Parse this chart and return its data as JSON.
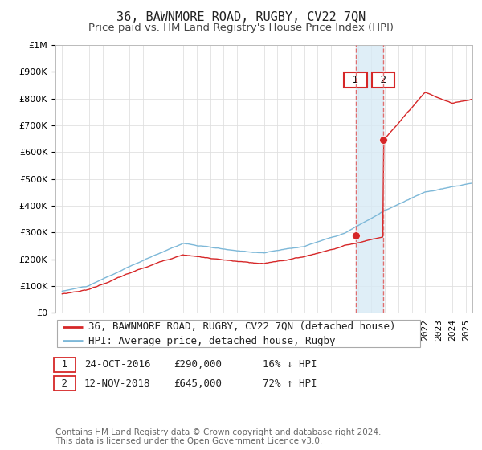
{
  "title": "36, BAWNMORE ROAD, RUGBY, CV22 7QN",
  "subtitle": "Price paid vs. HM Land Registry's House Price Index (HPI)",
  "legend_line1": "36, BAWNMORE ROAD, RUGBY, CV22 7QN (detached house)",
  "legend_line2": "HPI: Average price, detached house, Rugby",
  "footer": "Contains HM Land Registry data © Crown copyright and database right 2024.\nThis data is licensed under the Open Government Licence v3.0.",
  "sale1_label": "1",
  "sale1_date": "24-OCT-2016",
  "sale1_price": "£290,000",
  "sale1_pct": "16% ↓ HPI",
  "sale1_year": 2016.81,
  "sale1_value": 290000,
  "sale2_label": "2",
  "sale2_date": "12-NOV-2018",
  "sale2_price": "£645,000",
  "sale2_pct": "72% ↑ HPI",
  "sale2_year": 2018.87,
  "sale2_value": 645000,
  "hpi_color": "#7db8d8",
  "price_color": "#d62728",
  "vline_color": "#e06060",
  "shade_color": "#d8eaf5",
  "background_color": "#ffffff",
  "plot_bg_color": "#ffffff",
  "grid_color": "#e0e0e0",
  "ylim": [
    0,
    1000000
  ],
  "xlim_start": 1994.5,
  "xlim_end": 2025.5,
  "title_fontsize": 11,
  "subtitle_fontsize": 9.5,
  "tick_fontsize": 8,
  "legend_fontsize": 9,
  "annotation_fontsize": 9,
  "footer_fontsize": 7.5
}
